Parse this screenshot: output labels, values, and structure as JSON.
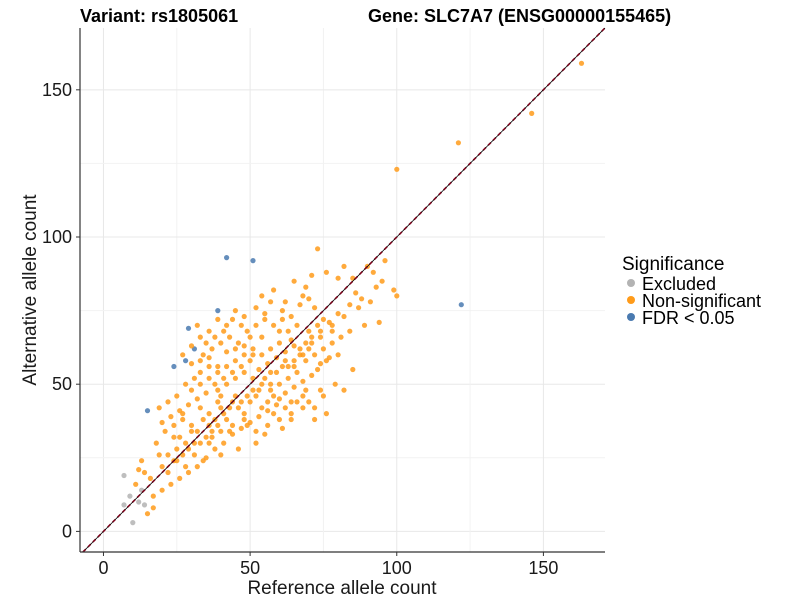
{
  "chart_data": {
    "type": "scatter",
    "title_variant": "Variant: rs1805061",
    "title_gene": "Gene: SLC7A7 (ENSG00000155465)",
    "xlabel": "Reference allele count",
    "ylabel": "Alternative allele count",
    "xlim": [
      -8,
      171
    ],
    "ylim": [
      -7,
      171
    ],
    "x_ticks": [
      0,
      50,
      100,
      150
    ],
    "y_ticks": [
      0,
      50,
      100,
      150
    ],
    "grid": true,
    "reference_line": "y = x (dashed)",
    "legend": {
      "title": "Significance",
      "position": "right",
      "items": [
        {
          "label": "Excluded",
          "color": "#b3b3b3"
        },
        {
          "label": "Non-significant",
          "color": "#ff9b1a"
        },
        {
          "label": "FDR < 0.05",
          "color": "#4a7ab0"
        }
      ]
    },
    "series": [
      {
        "name": "Excluded",
        "color": "#b3b3b3",
        "points": [
          [
            7,
            19
          ],
          [
            7,
            9
          ],
          [
            9,
            12
          ],
          [
            10,
            3
          ],
          [
            12,
            10
          ],
          [
            14,
            9
          ],
          [
            13,
            14
          ]
        ]
      },
      {
        "name": "FDR < 0.05",
        "color": "#4a7ab0",
        "points": [
          [
            42,
            93
          ],
          [
            51,
            92
          ],
          [
            39,
            75
          ],
          [
            29,
            69
          ],
          [
            31,
            62
          ],
          [
            28,
            58
          ],
          [
            24,
            56
          ],
          [
            15,
            41
          ],
          [
            122,
            77
          ]
        ]
      },
      {
        "name": "Non-significant",
        "color": "#ff9b1a",
        "points": [
          [
            163,
            159
          ],
          [
            146,
            142
          ],
          [
            121,
            132
          ],
          [
            100,
            123
          ],
          [
            90,
            90
          ],
          [
            92,
            88
          ],
          [
            96,
            92
          ],
          [
            95,
            85
          ],
          [
            100,
            80
          ],
          [
            99,
            82
          ],
          [
            93,
            83
          ],
          [
            86,
            81
          ],
          [
            88,
            79
          ],
          [
            85,
            86
          ],
          [
            73,
            96
          ],
          [
            76,
            88
          ],
          [
            71,
            87
          ],
          [
            65,
            85
          ],
          [
            69,
            83
          ],
          [
            80,
            86
          ],
          [
            82,
            90
          ],
          [
            68,
            80
          ],
          [
            62,
            78
          ],
          [
            58,
            82
          ],
          [
            54,
            80
          ],
          [
            89,
            70
          ],
          [
            94,
            71
          ],
          [
            82,
            73
          ],
          [
            78,
            70
          ],
          [
            75,
            72
          ],
          [
            72,
            76
          ],
          [
            70,
            79
          ],
          [
            67,
            77
          ],
          [
            64,
            73
          ],
          [
            61,
            75
          ],
          [
            57,
            78
          ],
          [
            55,
            74
          ],
          [
            52,
            76
          ],
          [
            48,
            73
          ],
          [
            45,
            75
          ],
          [
            42,
            70
          ],
          [
            39,
            72
          ],
          [
            36,
            68
          ],
          [
            33,
            66
          ],
          [
            80,
            60
          ],
          [
            85,
            55
          ],
          [
            76,
            58
          ],
          [
            79,
            50
          ],
          [
            82,
            48
          ],
          [
            70,
            62
          ],
          [
            73,
            55
          ],
          [
            67,
            60
          ],
          [
            64,
            65
          ],
          [
            60,
            68
          ],
          [
            57,
            62
          ],
          [
            54,
            66
          ],
          [
            51,
            60
          ],
          [
            48,
            63
          ],
          [
            45,
            58
          ],
          [
            42,
            61
          ],
          [
            39,
            56
          ],
          [
            36,
            59
          ],
          [
            33,
            54
          ],
          [
            30,
            57
          ],
          [
            63,
            52
          ],
          [
            60,
            45
          ],
          [
            57,
            50
          ],
          [
            54,
            42
          ],
          [
            51,
            48
          ],
          [
            48,
            40
          ],
          [
            45,
            46
          ],
          [
            42,
            38
          ],
          [
            39,
            44
          ],
          [
            36,
            36
          ],
          [
            33,
            42
          ],
          [
            30,
            34
          ],
          [
            27,
            40
          ],
          [
            24,
            32
          ],
          [
            66,
            44
          ],
          [
            69,
            48
          ],
          [
            72,
            42
          ],
          [
            75,
            46
          ],
          [
            64,
            38
          ],
          [
            61,
            35
          ],
          [
            58,
            40
          ],
          [
            55,
            33
          ],
          [
            52,
            30
          ],
          [
            49,
            36
          ],
          [
            46,
            28
          ],
          [
            43,
            34
          ],
          [
            40,
            26
          ],
          [
            37,
            32
          ],
          [
            34,
            24
          ],
          [
            31,
            30
          ],
          [
            28,
            22
          ],
          [
            25,
            28
          ],
          [
            22,
            20
          ],
          [
            19,
            26
          ],
          [
            16,
            18
          ],
          [
            13,
            24
          ],
          [
            20,
            14
          ],
          [
            17,
            12
          ],
          [
            23,
            16
          ],
          [
            26,
            18
          ],
          [
            29,
            20
          ],
          [
            32,
            22
          ],
          [
            35,
            25
          ],
          [
            38,
            28
          ],
          [
            41,
            30
          ],
          [
            44,
            33
          ],
          [
            47,
            35
          ],
          [
            50,
            37
          ],
          [
            53,
            39
          ],
          [
            56,
            41
          ],
          [
            59,
            43
          ],
          [
            62,
            47
          ],
          [
            65,
            49
          ],
          [
            68,
            51
          ],
          [
            71,
            53
          ],
          [
            74,
            57
          ],
          [
            77,
            59
          ],
          [
            38,
            50
          ],
          [
            41,
            52
          ],
          [
            44,
            54
          ],
          [
            47,
            56
          ],
          [
            50,
            58
          ],
          [
            53,
            55
          ],
          [
            56,
            57
          ],
          [
            59,
            59
          ],
          [
            62,
            61
          ],
          [
            65,
            63
          ],
          [
            35,
            47
          ],
          [
            32,
            45
          ],
          [
            29,
            43
          ],
          [
            26,
            41
          ],
          [
            23,
            39
          ],
          [
            20,
            37
          ],
          [
            18,
            30
          ],
          [
            21,
            34
          ],
          [
            24,
            36
          ],
          [
            27,
            38
          ],
          [
            30,
            48
          ],
          [
            33,
            50
          ],
          [
            36,
            52
          ],
          [
            39,
            48
          ],
          [
            42,
            50
          ],
          [
            45,
            52
          ],
          [
            48,
            54
          ],
          [
            51,
            52
          ],
          [
            54,
            50
          ],
          [
            57,
            48
          ],
          [
            60,
            50
          ],
          [
            63,
            56
          ],
          [
            66,
            54
          ],
          [
            69,
            58
          ],
          [
            72,
            60
          ],
          [
            75,
            62
          ],
          [
            78,
            64
          ],
          [
            81,
            66
          ],
          [
            84,
            68
          ],
          [
            46,
            64
          ],
          [
            49,
            68
          ],
          [
            52,
            70
          ],
          [
            55,
            72
          ],
          [
            58,
            70
          ],
          [
            61,
            72
          ],
          [
            43,
            66
          ],
          [
            40,
            64
          ],
          [
            37,
            62
          ],
          [
            34,
            60
          ],
          [
            31,
            52
          ],
          [
            28,
            50
          ],
          [
            25,
            46
          ],
          [
            22,
            44
          ],
          [
            19,
            42
          ],
          [
            14,
            20
          ],
          [
            11,
            16
          ],
          [
            17,
            8
          ],
          [
            15,
            6
          ],
          [
            12,
            21
          ],
          [
            36,
            40
          ],
          [
            38,
            38
          ],
          [
            40,
            42
          ],
          [
            44,
            44
          ],
          [
            46,
            42
          ],
          [
            50,
            44
          ],
          [
            52,
            46
          ],
          [
            56,
            44
          ],
          [
            58,
            46
          ],
          [
            62,
            42
          ],
          [
            64,
            44
          ],
          [
            68,
            46
          ],
          [
            70,
            44
          ],
          [
            74,
            48
          ],
          [
            40,
            46
          ],
          [
            34,
            38
          ],
          [
            30,
            36
          ],
          [
            26,
            32
          ],
          [
            24,
            24
          ],
          [
            28,
            30
          ],
          [
            32,
            34
          ],
          [
            36,
            30
          ],
          [
            40,
            34
          ],
          [
            44,
            36
          ],
          [
            48,
            38
          ],
          [
            52,
            34
          ],
          [
            56,
            36
          ],
          [
            60,
            38
          ],
          [
            64,
            40
          ],
          [
            68,
            42
          ],
          [
            72,
            38
          ],
          [
            76,
            40
          ],
          [
            66,
            70
          ],
          [
            70,
            68
          ],
          [
            74,
            66
          ],
          [
            78,
            68
          ],
          [
            60,
            64
          ],
          [
            63,
            68
          ],
          [
            50,
            66
          ],
          [
            47,
            70
          ],
          [
            44,
            72
          ],
          [
            41,
            68
          ],
          [
            38,
            66
          ],
          [
            35,
            64
          ],
          [
            32,
            70
          ],
          [
            30,
            63
          ],
          [
            27,
            60
          ],
          [
            54,
            60
          ],
          [
            51,
            62
          ],
          [
            48,
            60
          ],
          [
            45,
            62
          ],
          [
            42,
            56
          ],
          [
            39,
            54
          ],
          [
            36,
            56
          ],
          [
            33,
            58
          ],
          [
            59,
            54
          ],
          [
            62,
            58
          ],
          [
            65,
            56
          ],
          [
            68,
            60
          ],
          [
            71,
            64
          ],
          [
            74,
            68
          ],
          [
            77,
            71
          ],
          [
            80,
            74
          ],
          [
            84,
            77
          ],
          [
            87,
            76
          ],
          [
            91,
            78
          ],
          [
            20,
            22
          ],
          [
            22,
            26
          ],
          [
            25,
            24
          ],
          [
            27,
            26
          ],
          [
            29,
            28
          ],
          [
            31,
            26
          ],
          [
            33,
            30
          ],
          [
            35,
            32
          ],
          [
            37,
            34
          ],
          [
            39,
            36
          ],
          [
            41,
            40
          ],
          [
            43,
            42
          ],
          [
            47,
            44
          ],
          [
            49,
            46
          ],
          [
            53,
            48
          ],
          [
            55,
            52
          ],
          [
            57,
            54
          ],
          [
            61,
            56
          ],
          [
            65,
            58
          ],
          [
            67,
            62
          ],
          [
            69,
            64
          ],
          [
            71,
            66
          ],
          [
            73,
            70
          ]
        ]
      }
    ]
  }
}
